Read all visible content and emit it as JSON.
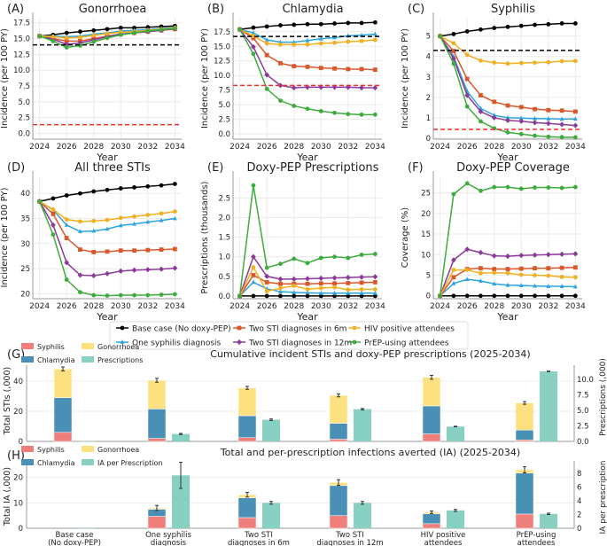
{
  "legend": {
    "series": [
      {
        "name": "Base case (No doxy-PEP)",
        "color": "#000000",
        "marker": "circle"
      },
      {
        "name": "One syphilis diagnosis",
        "color": "#2ea4dd",
        "marker": "triangle"
      },
      {
        "name": "Two STI diagnoses in 6m",
        "color": "#d9572b",
        "marker": "square"
      },
      {
        "name": "Two STI diagnoses in 12m",
        "color": "#8b3a98",
        "marker": "diamond"
      },
      {
        "name": "HIV positive attendees",
        "color": "#f0b020",
        "marker": "pentagon"
      },
      {
        "name": "PrEP-using attendees",
        "color": "#3dab3d",
        "marker": "hexagon"
      }
    ]
  },
  "chart_data": [
    {
      "panel": "(A)",
      "type": "line",
      "title": "Gonorrhoea",
      "xlabel": "Year",
      "ylabel": "Incidence (per 100 PY)",
      "x": [
        2024,
        2025,
        2026,
        2027,
        2028,
        2029,
        2030,
        2031,
        2032,
        2033,
        2034
      ],
      "xticks": [
        "2024",
        "2026",
        "2028",
        "2030",
        "2032",
        "2034"
      ],
      "ylim": [
        -0.9,
        18.3
      ],
      "yticks": [
        "0.0",
        "2.5",
        "5.0",
        "7.5",
        "10.0",
        "12.5",
        "15.0",
        "17.5"
      ],
      "grid": true,
      "reference_lines": [
        {
          "value": 14.0,
          "color": "#000000"
        },
        {
          "value": 1.4,
          "color": "#e8322a"
        }
      ],
      "series": [
        [
          15.4,
          15.6,
          15.9,
          16.1,
          16.3,
          16.5,
          16.7,
          16.7,
          16.8,
          16.9,
          17.0
        ],
        [
          15.4,
          15.4,
          15.3,
          15.4,
          15.7,
          15.9,
          16.2,
          16.3,
          16.4,
          16.6,
          16.8
        ],
        [
          15.4,
          15.0,
          14.6,
          14.6,
          15.0,
          15.4,
          15.7,
          15.9,
          16.1,
          16.3,
          16.5
        ],
        [
          15.4,
          14.9,
          14.1,
          14.3,
          14.8,
          15.3,
          15.7,
          15.9,
          16.1,
          16.3,
          16.6
        ],
        [
          15.4,
          15.3,
          15.1,
          15.2,
          15.5,
          15.8,
          16.0,
          16.1,
          16.3,
          16.5,
          16.7
        ],
        [
          15.4,
          14.6,
          13.6,
          13.9,
          14.5,
          15.1,
          15.6,
          15.9,
          16.2,
          16.4,
          16.6
        ]
      ]
    },
    {
      "panel": "(B)",
      "type": "line",
      "title": "Chlamydia",
      "xlabel": "Year",
      "ylabel": "Incidence (per 100 PY)",
      "x": [
        2024,
        2025,
        2026,
        2027,
        2028,
        2029,
        2030,
        2031,
        2032,
        2033,
        2034
      ],
      "xticks": [
        "2024",
        "2026",
        "2028",
        "2030",
        "2032",
        "2034"
      ],
      "ylim": [
        -0.9,
        19.9
      ],
      "yticks": [
        "0.0",
        "2.5",
        "5.0",
        "7.5",
        "10.0",
        "12.5",
        "15.0",
        "17.5"
      ],
      "grid": true,
      "reference_lines": [
        {
          "value": 16.7,
          "color": "#000000"
        },
        {
          "value": 8.3,
          "color": "#e8322a"
        }
      ],
      "series": [
        [
          17.9,
          18.2,
          18.4,
          18.6,
          18.7,
          18.8,
          18.8,
          18.9,
          19.0,
          19.0,
          19.1
        ],
        [
          17.9,
          17.3,
          16.1,
          15.7,
          15.7,
          16.0,
          16.3,
          16.5,
          16.8,
          16.9,
          17.1
        ],
        [
          17.9,
          16.4,
          13.5,
          12.1,
          11.6,
          11.5,
          11.3,
          11.2,
          11.1,
          11.1,
          11.0
        ],
        [
          17.9,
          14.9,
          10.1,
          8.3,
          7.9,
          8.0,
          8.0,
          8.0,
          8.0,
          7.9,
          7.9
        ],
        [
          17.9,
          16.8,
          15.5,
          15.3,
          15.3,
          15.3,
          15.5,
          15.6,
          15.8,
          15.9,
          16.1
        ],
        [
          17.9,
          13.7,
          7.7,
          5.7,
          4.8,
          4.3,
          3.9,
          3.6,
          3.4,
          3.3,
          3.3
        ]
      ]
    },
    {
      "panel": "(C)",
      "type": "line",
      "title": "Syphilis",
      "xlabel": "Year",
      "ylabel": "Incidence (per 100 PY)",
      "x": [
        2024,
        2025,
        2026,
        2027,
        2028,
        2029,
        2030,
        2031,
        2032,
        2033,
        2034
      ],
      "xticks": [
        "2024",
        "2026",
        "2028",
        "2030",
        "2032",
        "2034"
      ],
      "ylim": [
        -0.05,
        5.9
      ],
      "yticks": [
        "0",
        "1",
        "2",
        "3",
        "4",
        "5"
      ],
      "grid": true,
      "reference_lines": [
        {
          "value": 4.3,
          "color": "#000000"
        },
        {
          "value": 0.43,
          "color": "#e8322a"
        }
      ],
      "series": [
        [
          5.0,
          5.1,
          5.23,
          5.32,
          5.4,
          5.45,
          5.5,
          5.55,
          5.58,
          5.62,
          5.62
        ],
        [
          5.0,
          4.0,
          2.3,
          1.45,
          1.12,
          1.0,
          0.98,
          0.96,
          0.95,
          0.93,
          0.94
        ],
        [
          5.0,
          4.27,
          2.9,
          2.1,
          1.78,
          1.6,
          1.52,
          1.42,
          1.37,
          1.35,
          1.3
        ],
        [
          5.0,
          3.9,
          2.1,
          1.3,
          1.0,
          0.87,
          0.83,
          0.76,
          0.72,
          0.67,
          0.62
        ],
        [
          5.0,
          4.65,
          4.08,
          3.8,
          3.7,
          3.65,
          3.68,
          3.7,
          3.72,
          3.77,
          3.78
        ],
        [
          5.0,
          3.65,
          1.55,
          0.82,
          0.48,
          0.28,
          0.2,
          0.12,
          0.07,
          0.05,
          0.04
        ]
      ]
    },
    {
      "panel": "(D)",
      "type": "line",
      "title": "All three STIs",
      "xlabel": "Year",
      "ylabel": "Incidence (per 100 PY)",
      "x": [
        2024,
        2025,
        2026,
        2027,
        2028,
        2029,
        2030,
        2031,
        2032,
        2033,
        2034
      ],
      "xticks": [
        "2024",
        "2026",
        "2028",
        "2030",
        "2032",
        "2034"
      ],
      "ylim": [
        19.0,
        43.4
      ],
      "yticks": [
        "20",
        "25",
        "30",
        "35",
        "40"
      ],
      "grid": true,
      "reference_lines": [],
      "series": [
        [
          38.4,
          39.0,
          39.6,
          40.0,
          40.4,
          40.7,
          41.0,
          41.2,
          41.4,
          41.6,
          41.9
        ],
        [
          38.4,
          36.7,
          33.7,
          32.4,
          32.5,
          32.9,
          33.6,
          33.9,
          34.3,
          34.6,
          35.0
        ],
        [
          38.4,
          35.9,
          31.1,
          28.8,
          28.3,
          28.4,
          28.6,
          28.6,
          28.7,
          28.8,
          28.9
        ],
        [
          38.4,
          33.7,
          26.2,
          23.7,
          23.6,
          24.0,
          24.5,
          24.7,
          24.8,
          24.9,
          25.1
        ],
        [
          38.4,
          36.8,
          34.8,
          34.4,
          34.5,
          34.7,
          35.1,
          35.4,
          35.7,
          36.0,
          36.4
        ],
        [
          38.4,
          31.8,
          22.8,
          20.3,
          19.7,
          19.6,
          19.7,
          19.7,
          19.7,
          19.8,
          19.9
        ]
      ]
    },
    {
      "panel": "(E)",
      "type": "line",
      "title": "Doxy-PEP Prescriptions",
      "xlabel": "Year",
      "ylabel": "Prescriptions (thousands)",
      "x": [
        2024,
        2025,
        2026,
        2027,
        2028,
        2029,
        2030,
        2031,
        2032,
        2033,
        2034
      ],
      "xticks": [
        "2024",
        "2026",
        "2028",
        "2030",
        "2032",
        "2034"
      ],
      "ylim": [
        -0.07,
        3.05
      ],
      "yticks": [
        "0.0",
        "0.5",
        "1.0",
        "1.5",
        "2.0",
        "2.5"
      ],
      "grid": true,
      "reference_lines": [],
      "series": [
        [
          0,
          0,
          0,
          0,
          0,
          0,
          0,
          0,
          0,
          0,
          0
        ],
        [
          0,
          0.35,
          0.18,
          0.11,
          0.09,
          0.08,
          0.07,
          0.07,
          0.07,
          0.07,
          0.07
        ],
        [
          0,
          0.53,
          0.35,
          0.31,
          0.31,
          0.31,
          0.32,
          0.32,
          0.33,
          0.34,
          0.35
        ],
        [
          0,
          1.0,
          0.5,
          0.43,
          0.43,
          0.44,
          0.45,
          0.46,
          0.47,
          0.48,
          0.49
        ],
        [
          0,
          0.73,
          0.12,
          0.2,
          0.26,
          0.17,
          0.2,
          0.22,
          0.16,
          0.17,
          0.17
        ],
        [
          0,
          2.82,
          0.72,
          0.82,
          0.95,
          0.84,
          0.97,
          1.0,
          0.97,
          1.05,
          1.07
        ]
      ]
    },
    {
      "panel": "(F)",
      "type": "line",
      "title": "Doxy-PEP Coverage",
      "xlabel": "Year",
      "ylabel": "Coverage (%)",
      "x": [
        2024,
        2025,
        2026,
        2027,
        2028,
        2029,
        2030,
        2031,
        2032,
        2033,
        2034
      ],
      "xticks": [
        "2024",
        "2026",
        "2028",
        "2030",
        "2032",
        "2034"
      ],
      "ylim": [
        -0.7,
        29.0
      ],
      "yticks": [
        "0",
        "5",
        "10",
        "15",
        "20",
        "25"
      ],
      "grid": true,
      "reference_lines": [],
      "series": [
        [
          0,
          0,
          0,
          0,
          0,
          0,
          0,
          0,
          0,
          0,
          0
        ],
        [
          0,
          3.0,
          4.0,
          3.6,
          2.9,
          2.6,
          2.5,
          2.4,
          2.3,
          2.3,
          2.2
        ],
        [
          0,
          4.5,
          6.5,
          6.7,
          6.5,
          6.5,
          6.6,
          6.7,
          6.7,
          6.8,
          6.9
        ],
        [
          0,
          8.7,
          11.3,
          10.5,
          9.7,
          9.6,
          9.8,
          9.9,
          10.0,
          10.1,
          10.2
        ],
        [
          0,
          6.3,
          6.3,
          5.5,
          5.6,
          5.5,
          5.1,
          5.0,
          4.9,
          4.6,
          4.5
        ],
        [
          0,
          24.7,
          27.3,
          25.5,
          26.4,
          26.4,
          26.0,
          26.3,
          26.3,
          26.2,
          26.4
        ]
      ]
    },
    {
      "panel": "(G)",
      "type": "bar",
      "title": "Cumulative incident STIs and doxy-PEP prescriptions (2025-2034)",
      "ylabel": "Total STIs (,000)",
      "ylabel_right": "Prescriptions (,000)",
      "ylim": [
        0,
        50.5
      ],
      "yticks": [
        [
          "0",
          0
        ],
        [
          "20",
          20
        ],
        [
          "40",
          40
        ]
      ],
      "ylim_right": [
        0,
        12.3
      ],
      "yticks_right": [
        [
          "0.0",
          0
        ],
        [
          "2.5",
          2.5
        ],
        [
          "5.0",
          5
        ],
        [
          "7.5",
          7.5
        ],
        [
          "10.0",
          10
        ]
      ],
      "stack_legend": [
        {
          "name": "Syphilis",
          "color": "#f07f7c"
        },
        {
          "name": "Chlamydia",
          "color": "#4a8fb6"
        },
        {
          "name": "Gonorrhoea",
          "color": "#fde181"
        },
        {
          "name": "Prescriptions",
          "color": "#88d1c2"
        }
      ],
      "stacks": {
        "Syphilis": [
          6,
          2,
          2.5,
          1.5,
          5,
          1
        ],
        "Chlamydia": [
          23,
          19.5,
          14.5,
          10.5,
          18.5,
          6.5
        ],
        "Gonorrhoea": [
          19,
          19,
          18.5,
          18.5,
          19,
          18
        ]
      },
      "stack_error": [
        1.3,
        1.3,
        1.0,
        1.0,
        1.3,
        0.9
      ],
      "right_values": [
        0,
        1.2,
        3.5,
        5.2,
        2.4,
        11.3
      ],
      "right_error": [
        0,
        0.1,
        0.12,
        0.12,
        0.05,
        0.05
      ]
    },
    {
      "panel": "(H)",
      "type": "bar",
      "title": "Total and per-prescription infections averted (IA) (2025-2034)",
      "ylabel": "Total IA (,000)",
      "ylabel_right": "IA per prescription",
      "categories": [
        [
          "Base case",
          "(No doxy-PEP)"
        ],
        [
          "One syphilis",
          "diagnosis"
        ],
        [
          "Two STI",
          "diagnoses in 6m"
        ],
        [
          "Two STI",
          "diagnoses in 12m"
        ],
        [
          "HIV positive",
          "attendees"
        ],
        [
          "PrEP-using",
          "attendees"
        ]
      ],
      "ylim": [
        0,
        26.5
      ],
      "yticks": [
        [
          "0",
          0
        ],
        [
          "10",
          10
        ],
        [
          "20",
          20
        ]
      ],
      "ylim_right": [
        0,
        9.8
      ],
      "yticks_right": [
        [
          "0",
          0
        ],
        [
          "2",
          2
        ],
        [
          "4",
          4
        ],
        [
          "6",
          6
        ],
        [
          "8",
          8
        ]
      ],
      "stack_legend": [
        {
          "name": "Syphilis",
          "color": "#f07f7c"
        },
        {
          "name": "Chlamydia",
          "color": "#4a8fb6"
        },
        {
          "name": "Gonorrhoea",
          "color": "#fde181"
        },
        {
          "name": "IA per Prescription",
          "color": "#88d1c2"
        }
      ],
      "stacks": {
        "Syphilis": [
          0,
          4.7,
          4.2,
          5.0,
          1.8,
          5.6
        ],
        "Chlamydia": [
          0,
          2.8,
          7.8,
          11.8,
          3.9,
          16.1
        ],
        "Gonorrhoea": [
          0,
          0.5,
          1.2,
          1.2,
          0.6,
          1.3
        ]
      },
      "stack_error": [
        0,
        1.0,
        0.9,
        1.1,
        0.5,
        1.2
      ],
      "right_values": [
        0,
        7.7,
        3.7,
        3.7,
        2.6,
        2.1
      ],
      "right_error": [
        0,
        1.9,
        0.2,
        0.2,
        0.15,
        0.1
      ]
    }
  ]
}
